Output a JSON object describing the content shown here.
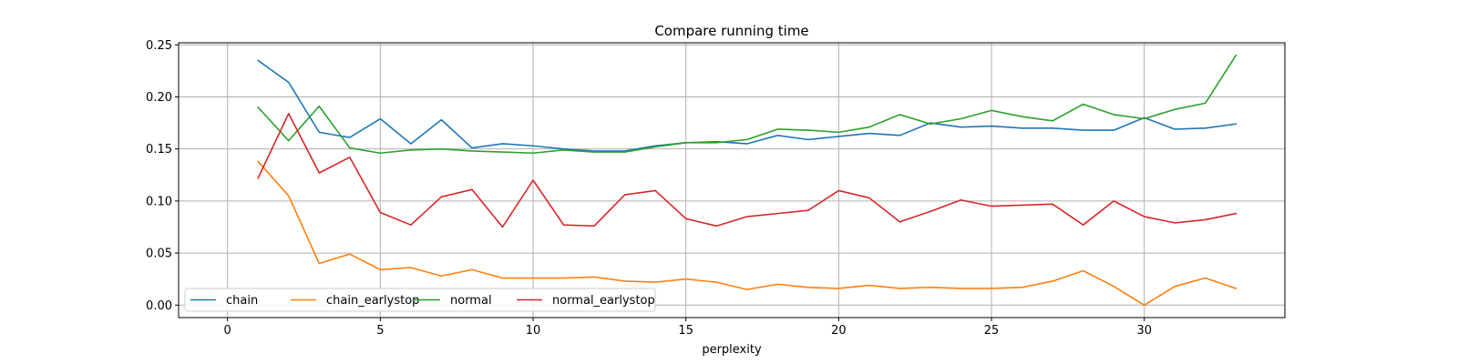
{
  "chart_data": {
    "type": "line",
    "title": "Compare running time",
    "xlabel": "perplexity",
    "ylabel": "",
    "xlim": [
      -1.6,
      34.6
    ],
    "ylim": [
      -0.012,
      0.252
    ],
    "xticks": [
      0,
      5,
      10,
      15,
      20,
      25,
      30
    ],
    "yticks": [
      0.0,
      0.05,
      0.1,
      0.15,
      0.2,
      0.25
    ],
    "xtick_labels": [
      "0",
      "5",
      "10",
      "15",
      "20",
      "25",
      "30"
    ],
    "ytick_labels": [
      "0.00",
      "0.05",
      "0.10",
      "0.15",
      "0.20",
      "0.25"
    ],
    "grid": true,
    "legend_position": "lower-left",
    "x": [
      1,
      2,
      3,
      4,
      5,
      6,
      7,
      8,
      9,
      10,
      11,
      12,
      13,
      14,
      15,
      16,
      17,
      18,
      19,
      20,
      21,
      22,
      23,
      24,
      25,
      26,
      27,
      28,
      29,
      30,
      31,
      32,
      33
    ],
    "series": [
      {
        "name": "chain",
        "color": "#1f77b4",
        "values": [
          0.235,
          0.214,
          0.166,
          0.161,
          0.179,
          0.155,
          0.178,
          0.151,
          0.155,
          0.153,
          0.15,
          0.148,
          0.148,
          0.153,
          0.156,
          0.157,
          0.155,
          0.163,
          0.159,
          0.162,
          0.165,
          0.163,
          0.175,
          0.171,
          0.172,
          0.17,
          0.17,
          0.168,
          0.168,
          0.18,
          0.169,
          0.17,
          0.174
        ]
      },
      {
        "name": "chain_earlystop",
        "color": "#ff7f0e",
        "values": [
          0.138,
          0.105,
          0.04,
          0.049,
          0.034,
          0.036,
          0.028,
          0.034,
          0.026,
          0.026,
          0.026,
          0.027,
          0.023,
          0.022,
          0.025,
          0.022,
          0.015,
          0.02,
          0.017,
          0.016,
          0.019,
          0.016,
          0.017,
          0.016,
          0.016,
          0.017,
          0.023,
          0.033,
          0.018,
          0.0,
          0.018,
          0.026,
          0.016
        ]
      },
      {
        "name": "normal",
        "color": "#2ca02c",
        "values": [
          0.19,
          0.158,
          0.191,
          0.151,
          0.146,
          0.149,
          0.15,
          0.148,
          0.147,
          0.146,
          0.149,
          0.147,
          0.147,
          0.152,
          0.156,
          0.156,
          0.159,
          0.169,
          0.168,
          0.166,
          0.171,
          0.183,
          0.174,
          0.179,
          0.187,
          0.181,
          0.177,
          0.193,
          0.183,
          0.179,
          0.188,
          0.194,
          0.24
        ]
      },
      {
        "name": "normal_earlystop",
        "color": "#d62728",
        "values": [
          0.122,
          0.184,
          0.127,
          0.142,
          0.089,
          0.077,
          0.104,
          0.111,
          0.075,
          0.12,
          0.077,
          0.076,
          0.106,
          0.11,
          0.083,
          0.076,
          0.085,
          0.088,
          0.091,
          0.11,
          0.103,
          0.08,
          0.09,
          0.101,
          0.095,
          0.096,
          0.097,
          0.077,
          0.1,
          0.085,
          0.079,
          0.082,
          0.088
        ]
      }
    ]
  }
}
